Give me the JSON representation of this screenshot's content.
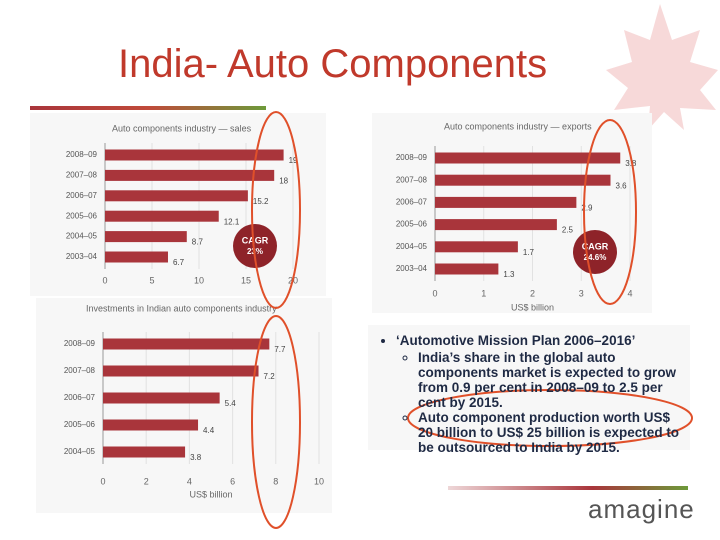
{
  "slide": {
    "title": "India- Auto Components",
    "notes": {
      "heading": "‘Automotive Mission Plan 2006–2016’",
      "items": [
        "India’s share in the global auto components market is expected to grow from 0.9 per cent in 2008–09 to 2.5 per cent by 2015.",
        "Auto component production worth US$ 20 billion to US$ 25 billion is expected to be outsourced to India by 2015."
      ]
    },
    "logo": "amagine"
  },
  "chart_data": [
    {
      "type": "barh",
      "title": "Auto components industry — sales",
      "categories": [
        "2008–09",
        "2007–08",
        "2006–07",
        "2005–06",
        "2004–05",
        "2003–04"
      ],
      "values": [
        19,
        18,
        15.2,
        12.1,
        8.7,
        6.7
      ],
      "color": "#a9353b",
      "xlim": [
        0,
        20
      ],
      "xticks": [
        0,
        5,
        10,
        15,
        20
      ],
      "grid": true,
      "annotation": [
        "CAGR",
        "23%"
      ]
    },
    {
      "type": "barh",
      "title": "Auto components industry — exports",
      "x_label": "US$ billion",
      "categories": [
        "2008–09",
        "2007–08",
        "2006–07",
        "2005–06",
        "2004–05",
        "2003–04"
      ],
      "values": [
        3.8,
        3.6,
        2.9,
        2.5,
        1.7,
        1.3
      ],
      "color": "#a9353b",
      "xlim": [
        0,
        4
      ],
      "xticks": [
        0,
        1,
        2,
        3,
        4
      ],
      "grid": true,
      "annotation": [
        "CAGR",
        "24.6%"
      ]
    },
    {
      "type": "barh",
      "title": "Investments in Indian auto components industry",
      "x_label": "US$ billion",
      "categories": [
        "2008–09",
        "2007–08",
        "2006–07",
        "2005–06",
        "2004–05"
      ],
      "values": [
        7.7,
        7.2,
        5.4,
        4.4,
        3.8
      ],
      "color": "#a9353b",
      "xlim": [
        0,
        10
      ],
      "xticks": [
        0,
        2,
        4,
        6,
        8,
        10
      ],
      "grid": true
    }
  ]
}
